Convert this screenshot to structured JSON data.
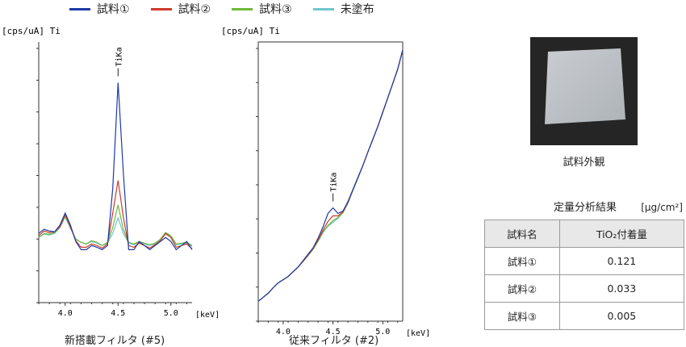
{
  "legend": [
    {
      "label": "試料①",
      "color": "#1f3aa8"
    },
    {
      "label": "試料②",
      "color": "#d03a2a"
    },
    {
      "label": "試料③",
      "color": "#6db93a"
    },
    {
      "label": "未塗布",
      "color": "#6fc7c9"
    }
  ],
  "chart_data": [
    {
      "type": "line",
      "ylabel": "[cps/uA] Ti",
      "xlabel": "[keV]",
      "caption": "新搭載フィルタ (#5)",
      "xlim": [
        3.75,
        5.2
      ],
      "xticks": [
        4.0,
        4.5,
        5.0
      ],
      "xtick_labels": [
        "4.0",
        "4.5",
        "5.0"
      ],
      "annotation": {
        "text": "TiKa",
        "x": 4.5
      },
      "series": [
        {
          "name": "試料①",
          "x": [
            3.75,
            3.8,
            3.85,
            3.9,
            3.95,
            4.0,
            4.05,
            4.1,
            4.15,
            4.2,
            4.25,
            4.3,
            4.35,
            4.4,
            4.45,
            4.5,
            4.55,
            4.6,
            4.65,
            4.7,
            4.75,
            4.8,
            4.85,
            4.9,
            4.95,
            5.0,
            5.05,
            5.1,
            5.15,
            5.2
          ],
          "y": [
            0.25,
            0.3,
            0.28,
            0.27,
            0.35,
            0.5,
            0.35,
            0.15,
            0.05,
            0.05,
            0.1,
            0.08,
            0.05,
            0.1,
            0.8,
            2.1,
            1.0,
            0.05,
            0.05,
            0.15,
            0.1,
            0.05,
            0.1,
            0.15,
            0.2,
            0.15,
            0.05,
            0.1,
            0.15,
            0.05
          ]
        },
        {
          "name": "試料②",
          "x": [
            3.75,
            3.8,
            3.85,
            3.9,
            3.95,
            4.0,
            4.05,
            4.1,
            4.15,
            4.2,
            4.25,
            4.3,
            4.35,
            4.4,
            4.45,
            4.5,
            4.55,
            4.6,
            4.65,
            4.7,
            4.75,
            4.8,
            4.85,
            4.9,
            4.95,
            5.0,
            5.05,
            5.1,
            5.15,
            5.2
          ],
          "y": [
            0.22,
            0.28,
            0.26,
            0.27,
            0.33,
            0.48,
            0.33,
            0.16,
            0.08,
            0.08,
            0.12,
            0.1,
            0.07,
            0.12,
            0.5,
            0.9,
            0.45,
            0.1,
            0.08,
            0.13,
            0.1,
            0.07,
            0.11,
            0.16,
            0.25,
            0.2,
            0.08,
            0.1,
            0.12,
            0.06
          ]
        },
        {
          "name": "試料③",
          "x": [
            3.75,
            3.8,
            3.85,
            3.9,
            3.95,
            4.0,
            4.05,
            4.1,
            4.15,
            4.2,
            4.25,
            4.3,
            4.35,
            4.4,
            4.45,
            4.5,
            4.55,
            4.6,
            4.65,
            4.7,
            4.75,
            4.8,
            4.85,
            4.9,
            4.95,
            5.0,
            5.05,
            5.1,
            5.15,
            5.2
          ],
          "y": [
            0.2,
            0.25,
            0.24,
            0.26,
            0.33,
            0.46,
            0.32,
            0.18,
            0.14,
            0.12,
            0.16,
            0.14,
            0.1,
            0.14,
            0.32,
            0.6,
            0.3,
            0.14,
            0.12,
            0.15,
            0.13,
            0.11,
            0.13,
            0.18,
            0.26,
            0.22,
            0.12,
            0.13,
            0.14,
            0.1
          ]
        },
        {
          "name": "未塗布",
          "x": [
            3.75,
            3.8,
            3.85,
            3.9,
            3.95,
            4.0,
            4.05,
            4.1,
            4.15,
            4.2,
            4.25,
            4.3,
            4.35,
            4.4,
            4.45,
            4.5,
            4.55,
            4.6,
            4.65,
            4.7,
            4.75,
            4.8,
            4.85,
            4.9,
            4.95,
            5.0,
            5.05,
            5.1,
            5.15,
            5.2
          ],
          "y": [
            0.2,
            0.24,
            0.23,
            0.25,
            0.32,
            0.45,
            0.31,
            0.18,
            0.14,
            0.12,
            0.15,
            0.13,
            0.1,
            0.13,
            0.25,
            0.44,
            0.25,
            0.13,
            0.11,
            0.14,
            0.12,
            0.1,
            0.12,
            0.17,
            0.24,
            0.2,
            0.11,
            0.12,
            0.13,
            0.09
          ]
        }
      ],
      "ylim": [
        -0.6,
        2.6
      ]
    },
    {
      "type": "line",
      "ylabel": "[cps/uA] Ti",
      "xlabel": "[keV]",
      "caption": "従来フィルタ (#2)",
      "xlim": [
        3.75,
        5.2
      ],
      "xticks": [
        4.0,
        4.5,
        5.0
      ],
      "xtick_labels": [
        "4.0",
        "4.5",
        "5.0"
      ],
      "annotation": {
        "text": "TiKa",
        "x": 4.5
      },
      "series": [
        {
          "name": "試料①",
          "x": [
            3.75,
            3.8,
            3.85,
            3.9,
            3.95,
            4.0,
            4.05,
            4.1,
            4.15,
            4.2,
            4.25,
            4.3,
            4.35,
            4.4,
            4.45,
            4.5,
            4.55,
            4.6,
            4.65,
            4.7,
            4.75,
            4.8,
            4.85,
            4.9,
            4.95,
            5.0,
            5.05,
            5.1,
            5.15,
            5.2
          ],
          "y": [
            0.05,
            0.1,
            0.15,
            0.22,
            0.28,
            0.32,
            0.36,
            0.42,
            0.48,
            0.56,
            0.64,
            0.72,
            0.84,
            0.98,
            1.15,
            1.22,
            1.15,
            1.18,
            1.3,
            1.45,
            1.6,
            1.75,
            1.92,
            2.08,
            2.24,
            2.42,
            2.6,
            2.78,
            2.96,
            3.2
          ]
        },
        {
          "name": "試料②",
          "x": [
            3.75,
            3.8,
            3.85,
            3.9,
            3.95,
            4.0,
            4.05,
            4.1,
            4.15,
            4.2,
            4.25,
            4.3,
            4.35,
            4.4,
            4.45,
            4.5,
            4.55,
            4.6,
            4.65,
            4.7,
            4.75,
            4.8,
            4.85,
            4.9,
            4.95,
            5.0,
            5.05,
            5.1,
            5.15,
            5.2
          ],
          "y": [
            0.05,
            0.1,
            0.15,
            0.22,
            0.28,
            0.32,
            0.36,
            0.42,
            0.48,
            0.55,
            0.63,
            0.71,
            0.82,
            0.94,
            1.05,
            1.12,
            1.12,
            1.17,
            1.29,
            1.45,
            1.6,
            1.75,
            1.92,
            2.08,
            2.24,
            2.42,
            2.6,
            2.78,
            2.96,
            3.2
          ]
        },
        {
          "name": "試料③",
          "x": [
            3.75,
            3.8,
            3.85,
            3.9,
            3.95,
            4.0,
            4.05,
            4.1,
            4.15,
            4.2,
            4.25,
            4.3,
            4.35,
            4.4,
            4.45,
            4.5,
            4.55,
            4.6,
            4.65,
            4.7,
            4.75,
            4.8,
            4.85,
            4.9,
            4.95,
            5.0,
            5.05,
            5.1,
            5.15,
            5.2
          ],
          "y": [
            0.05,
            0.1,
            0.15,
            0.22,
            0.28,
            0.32,
            0.36,
            0.42,
            0.48,
            0.55,
            0.62,
            0.7,
            0.8,
            0.92,
            1.0,
            1.06,
            1.1,
            1.16,
            1.28,
            1.44,
            1.59,
            1.75,
            1.92,
            2.08,
            2.24,
            2.42,
            2.6,
            2.78,
            2.96,
            3.2
          ]
        },
        {
          "name": "未塗布",
          "x": [
            3.75,
            3.8,
            3.85,
            3.9,
            3.95,
            4.0,
            4.05,
            4.1,
            4.15,
            4.2,
            4.25,
            4.3,
            4.35,
            4.4,
            4.45,
            4.5,
            4.55,
            4.6,
            4.65,
            4.7,
            4.75,
            4.8,
            4.85,
            4.9,
            4.95,
            5.0,
            5.05,
            5.1,
            5.15,
            5.2
          ],
          "y": [
            0.05,
            0.1,
            0.15,
            0.22,
            0.28,
            0.32,
            0.36,
            0.42,
            0.48,
            0.55,
            0.62,
            0.7,
            0.8,
            0.91,
            0.99,
            1.04,
            1.09,
            1.16,
            1.28,
            1.44,
            1.59,
            1.75,
            1.92,
            2.08,
            2.24,
            2.42,
            2.6,
            2.78,
            2.96,
            3.2
          ]
        }
      ],
      "ylim": [
        -0.2,
        3.3
      ]
    }
  ],
  "photo": {
    "caption": "試料外観"
  },
  "table": {
    "title": "定量分析結果",
    "unit": "[μg/cm²]",
    "headers": [
      "試料名",
      "TiO₂付着量"
    ],
    "rows": [
      [
        "試料①",
        "0.121"
      ],
      [
        "試料②",
        "0.033"
      ],
      [
        "試料③",
        "0.005"
      ]
    ]
  }
}
